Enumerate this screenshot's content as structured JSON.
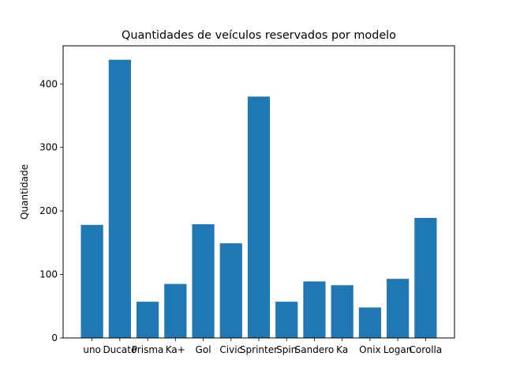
{
  "chart_data": {
    "type": "bar",
    "title": "Quantidades de veículos reservados por modelo",
    "xlabel": "",
    "ylabel": "Quantidade",
    "categories": [
      "uno",
      "Ducato",
      "Prisma",
      "Ka+",
      "Gol",
      "Civic",
      "Sprinter",
      "Spin",
      "Sandero",
      "Ka",
      "Onix",
      "Logan",
      "Corolla"
    ],
    "values": [
      178,
      438,
      57,
      85,
      179,
      149,
      380,
      57,
      89,
      83,
      48,
      93,
      189
    ],
    "ylim": [
      0,
      460
    ],
    "yticks": [
      0,
      100,
      200,
      300,
      400
    ],
    "bar_color": "#1f77b4",
    "grid": false,
    "legend": "none"
  }
}
